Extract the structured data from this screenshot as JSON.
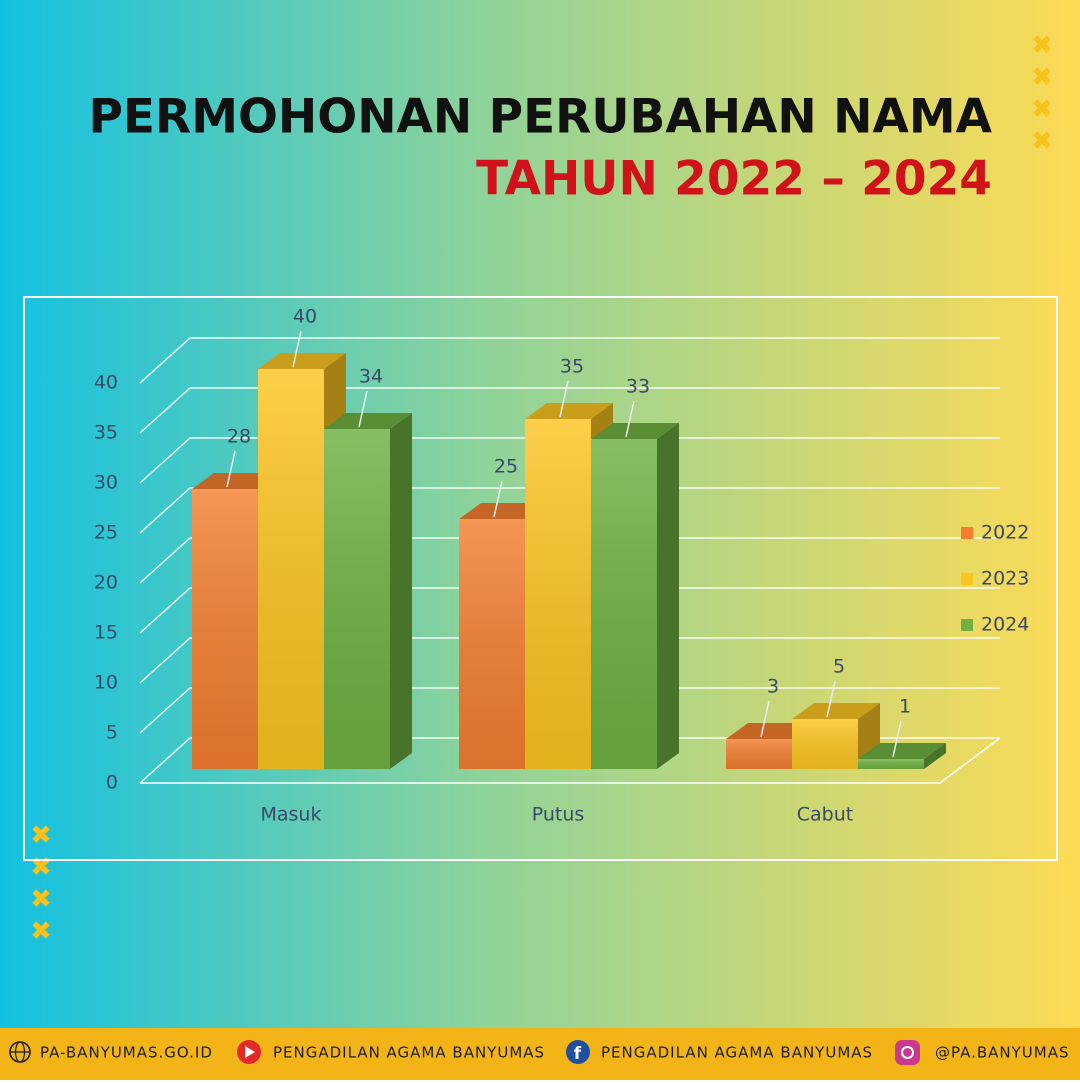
{
  "chart_data": {
    "type": "bar3d",
    "title": "PERMOHONAN PERUBAHAN NAMA",
    "subtitle": "TAHUN 2022 – 2024",
    "categories": [
      "Masuk",
      "Putus",
      "Cabut"
    ],
    "series": [
      {
        "name": "2022",
        "color": "#f47f30",
        "values": [
          28,
          25,
          3
        ]
      },
      {
        "name": "2023",
        "color": "#fdc521",
        "values": [
          40,
          35,
          5
        ]
      },
      {
        "name": "2024",
        "color": "#6fb141",
        "values": [
          34,
          33,
          1
        ]
      }
    ],
    "ylim": [
      0,
      40
    ],
    "yticks": [
      0,
      5,
      10,
      15,
      20,
      25,
      30,
      35,
      40
    ],
    "grid": true,
    "legend": "right"
  },
  "footer": {
    "website": "PA-BANYUMAS.GO.ID",
    "youtube": "PENGADILAN AGAMA BANYUMAS",
    "facebook": "PENGADILAN AGAMA BANYUMAS",
    "instagram": "@PA.BANYUMAS"
  }
}
